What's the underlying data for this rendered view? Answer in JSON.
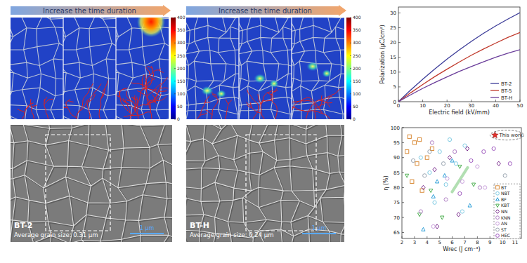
{
  "panels": [
    {
      "header": "Increase the time duration",
      "colorbar": {
        "range": [
          0,
          400
        ],
        "ticks": [
          0,
          50,
          100,
          150,
          200,
          250,
          300,
          350,
          400
        ]
      },
      "sample": "BT-2",
      "grain_size": "Average grain size: 0.31 μm",
      "scale_bar": "1 μm"
    },
    {
      "header": "Increase the time duration",
      "colorbar": {
        "range": [
          0,
          400
        ],
        "ticks": [
          0,
          50,
          100,
          150,
          200,
          250,
          300,
          350,
          400
        ]
      },
      "sample": "BT-H",
      "grain_size": "Average grain size: 0.24 μm",
      "scale_bar": "1 μm"
    }
  ],
  "chart_data": [
    {
      "type": "line",
      "x_label": "Electric field (kV/mm)",
      "y_label": "Polarization (μC/cm²)",
      "x": [
        0,
        5,
        10,
        15,
        20,
        25,
        30,
        35,
        40,
        45,
        50
      ],
      "xlim": [
        0,
        50
      ],
      "xticks": [
        0,
        10,
        20,
        30,
        40,
        50
      ],
      "ylim": [
        0,
        32
      ],
      "yticks": [
        0,
        5,
        10,
        15,
        20,
        25,
        30
      ],
      "legend": "lower right",
      "series": [
        {
          "name": "BT-2",
          "color": "#3b3b98",
          "values": [
            0,
            3.9,
            7.6,
            11.1,
            14.4,
            17.5,
            20.4,
            23.1,
            25.6,
            27.9,
            30.1
          ]
        },
        {
          "name": "BT-5",
          "color": "#c0392b",
          "values": [
            0,
            3.0,
            5.8,
            8.5,
            11.0,
            13.4,
            15.7,
            17.8,
            19.8,
            21.7,
            23.4
          ]
        },
        {
          "name": "BT-H",
          "color": "#6a3d9a",
          "values": [
            0,
            2.3,
            4.5,
            6.5,
            8.4,
            10.2,
            11.9,
            13.5,
            15.0,
            16.4,
            17.6
          ]
        }
      ]
    },
    {
      "type": "scatter",
      "x_label": "Wrec (J cm⁻³)",
      "y_label": "η (%)",
      "xlim": [
        2,
        11.5
      ],
      "xticks": [
        2,
        3,
        4,
        5,
        6,
        7,
        8,
        9,
        10,
        11
      ],
      "ylim": [
        63,
        100
      ],
      "yticks": [
        65,
        70,
        75,
        80,
        85,
        90,
        95,
        100
      ],
      "legend": "lower right",
      "series": [
        {
          "name": "BT",
          "color": "#d98c3a",
          "marker": "square",
          "x": [
            2.4,
            3.0,
            3.4,
            2.6,
            3.2,
            4.0,
            3.6,
            2.8,
            4.4
          ],
          "values": [
            92,
            95,
            96,
            97,
            88,
            90,
            79,
            82,
            93
          ]
        },
        {
          "name": "NBT",
          "color": "#7fcbe3",
          "marker": "circle",
          "x": [
            3.5,
            4.2,
            5.0,
            5.5,
            6.3,
            7.0,
            5.8,
            4.6,
            6.8
          ],
          "values": [
            90,
            85,
            92,
            81,
            88,
            94,
            96,
            75,
            72
          ]
        },
        {
          "name": "BF",
          "color": "#2e9fd8",
          "marker": "triangle",
          "x": [
            3.7,
            4.5,
            5.4,
            6.0,
            7.4,
            4.8
          ],
          "values": [
            66,
            77,
            84,
            89,
            74,
            82
          ]
        },
        {
          "name": "KBT",
          "color": "#4caf50",
          "marker": "triangle-down",
          "x": [
            2.4,
            3.4,
            4.3,
            5.2,
            6.6,
            7.7
          ],
          "values": [
            84,
            71,
            79,
            70,
            87,
            81
          ]
        },
        {
          "name": "NN",
          "color": "#7b2d8e",
          "marker": "diamond",
          "x": [
            3.7,
            4.6,
            4.8,
            5.8,
            6.5,
            7.2,
            9.7
          ],
          "values": [
            80,
            86,
            67,
            90,
            71,
            93,
            88
          ]
        },
        {
          "name": "KNN",
          "color": "#b07fc4",
          "marker": "circle",
          "x": [
            3.5,
            4.4,
            5.5,
            6.2,
            8.2
          ],
          "values": [
            72,
            95,
            76,
            92,
            80
          ]
        },
        {
          "name": "AN",
          "color": "#c9a0dc",
          "marker": "circle",
          "x": [
            4.5,
            5.6,
            6.8,
            8.0,
            8.6
          ],
          "values": [
            67,
            83,
            82,
            87,
            80
          ]
        },
        {
          "name": "ST",
          "color": "#9aa5b1",
          "marker": "circle",
          "x": [
            2.9,
            3.8,
            4.2,
            5.3,
            10.2
          ],
          "values": [
            89,
            84,
            92,
            88,
            84
          ]
        },
        {
          "name": "HEC",
          "color": "#a05cc0",
          "marker": "circle",
          "x": [
            7.5,
            8.5,
            9.3,
            10.6,
            6.6
          ],
          "values": [
            89,
            92,
            93,
            88,
            78
          ]
        },
        {
          "name": "This work",
          "color": "#e0302a",
          "marker": "star",
          "x": [
            9.4
          ],
          "values": [
            97.5
          ]
        }
      ]
    }
  ]
}
